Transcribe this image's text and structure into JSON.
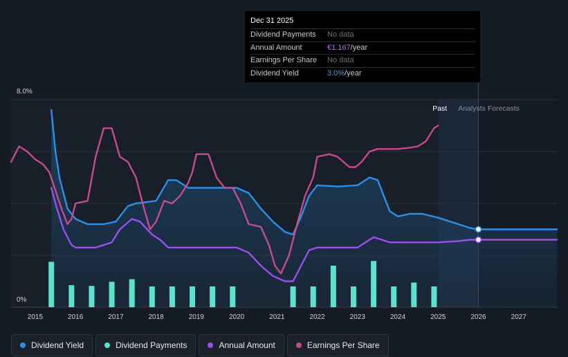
{
  "chart_data": {
    "type": "line",
    "y_max_label": "8.0%",
    "y_min_label": "0%",
    "xlim": [
      2014.4,
      2027.95
    ],
    "ylim": [
      0,
      8
    ],
    "x_ticks": [
      "2015",
      "2016",
      "2017",
      "2018",
      "2019",
      "2020",
      "2021",
      "2022",
      "2023",
      "2024",
      "2025",
      "2026",
      "2027"
    ],
    "past_label": "Past",
    "forecast_label": "Analysts Forecasts",
    "past_end_x": 2025.0,
    "forecast_start_x": 2026.0,
    "series": [
      {
        "name": "Dividend Yield",
        "color": "#2d8fe8",
        "points": [
          [
            2015.4,
            7.6
          ],
          [
            2015.5,
            6.0
          ],
          [
            2015.6,
            5.0
          ],
          [
            2015.8,
            3.8
          ],
          [
            2016.0,
            3.4
          ],
          [
            2016.3,
            3.2
          ],
          [
            2016.7,
            3.2
          ],
          [
            2017.0,
            3.3
          ],
          [
            2017.3,
            3.9
          ],
          [
            2017.5,
            4.0
          ],
          [
            2018.0,
            4.1
          ],
          [
            2018.3,
            4.9
          ],
          [
            2018.5,
            4.9
          ],
          [
            2018.8,
            4.6
          ],
          [
            2019.0,
            4.6
          ],
          [
            2019.5,
            4.6
          ],
          [
            2020.0,
            4.6
          ],
          [
            2020.3,
            4.4
          ],
          [
            2020.6,
            3.8
          ],
          [
            2020.9,
            3.3
          ],
          [
            2021.2,
            2.9
          ],
          [
            2021.4,
            2.8
          ],
          [
            2021.6,
            3.5
          ],
          [
            2021.8,
            4.3
          ],
          [
            2022.0,
            4.7
          ],
          [
            2022.5,
            4.65
          ],
          [
            2023.0,
            4.7
          ],
          [
            2023.3,
            5.0
          ],
          [
            2023.5,
            4.9
          ],
          [
            2023.8,
            3.7
          ],
          [
            2024.0,
            3.5
          ],
          [
            2024.3,
            3.6
          ],
          [
            2024.6,
            3.6
          ],
          [
            2025.0,
            3.45
          ],
          [
            2025.5,
            3.2
          ],
          [
            2025.8,
            3.05
          ],
          [
            2026.0,
            3.0
          ],
          [
            2027.95,
            3.0
          ]
        ]
      },
      {
        "name": "Annual Amount",
        "color": "#9c4ef0",
        "points": [
          [
            2015.4,
            4.6
          ],
          [
            2015.5,
            4.0
          ],
          [
            2015.7,
            3.0
          ],
          [
            2015.9,
            2.4
          ],
          [
            2016.0,
            2.3
          ],
          [
            2016.5,
            2.3
          ],
          [
            2016.9,
            2.5
          ],
          [
            2017.1,
            3.0
          ],
          [
            2017.4,
            3.4
          ],
          [
            2017.6,
            3.3
          ],
          [
            2017.9,
            2.8
          ],
          [
            2018.1,
            2.6
          ],
          [
            2018.3,
            2.3
          ],
          [
            2019.0,
            2.3
          ],
          [
            2019.5,
            2.3
          ],
          [
            2020.0,
            2.3
          ],
          [
            2020.3,
            2.1
          ],
          [
            2020.6,
            1.6
          ],
          [
            2020.9,
            1.2
          ],
          [
            2021.2,
            1.0
          ],
          [
            2021.4,
            1.0
          ],
          [
            2021.6,
            1.6
          ],
          [
            2021.8,
            2.2
          ],
          [
            2022.0,
            2.3
          ],
          [
            2022.5,
            2.3
          ],
          [
            2023.0,
            2.3
          ],
          [
            2023.2,
            2.5
          ],
          [
            2023.4,
            2.7
          ],
          [
            2023.6,
            2.6
          ],
          [
            2023.8,
            2.5
          ],
          [
            2024.0,
            2.5
          ],
          [
            2024.5,
            2.5
          ],
          [
            2025.0,
            2.5
          ],
          [
            2025.5,
            2.55
          ],
          [
            2025.8,
            2.6
          ],
          [
            2026.0,
            2.6
          ],
          [
            2027.95,
            2.6
          ]
        ]
      },
      {
        "name": "Earnings Per Share",
        "color": "#c64a8f",
        "points": [
          [
            2014.4,
            5.6
          ],
          [
            2014.6,
            6.2
          ],
          [
            2014.8,
            6.0
          ],
          [
            2015.0,
            5.7
          ],
          [
            2015.2,
            5.5
          ],
          [
            2015.35,
            5.2
          ],
          [
            2015.5,
            4.5
          ],
          [
            2015.65,
            3.8
          ],
          [
            2015.8,
            3.2
          ],
          [
            2015.9,
            3.4
          ],
          [
            2016.0,
            4.0
          ],
          [
            2016.3,
            4.1
          ],
          [
            2016.5,
            5.8
          ],
          [
            2016.7,
            6.9
          ],
          [
            2016.9,
            6.9
          ],
          [
            2017.1,
            5.8
          ],
          [
            2017.3,
            5.6
          ],
          [
            2017.5,
            5.0
          ],
          [
            2017.7,
            3.8
          ],
          [
            2017.85,
            3.0
          ],
          [
            2018.0,
            3.3
          ],
          [
            2018.2,
            4.1
          ],
          [
            2018.4,
            4.0
          ],
          [
            2018.6,
            4.3
          ],
          [
            2018.8,
            4.8
          ],
          [
            2018.9,
            5.2
          ],
          [
            2019.0,
            5.9
          ],
          [
            2019.3,
            5.9
          ],
          [
            2019.5,
            5.0
          ],
          [
            2019.7,
            4.6
          ],
          [
            2019.9,
            4.6
          ],
          [
            2020.1,
            4.0
          ],
          [
            2020.3,
            3.2
          ],
          [
            2020.6,
            3.1
          ],
          [
            2020.8,
            2.4
          ],
          [
            2020.95,
            1.6
          ],
          [
            2021.1,
            1.3
          ],
          [
            2021.3,
            2.0
          ],
          [
            2021.5,
            3.2
          ],
          [
            2021.7,
            4.3
          ],
          [
            2021.9,
            5.0
          ],
          [
            2022.0,
            5.8
          ],
          [
            2022.3,
            5.9
          ],
          [
            2022.5,
            5.8
          ],
          [
            2022.8,
            5.4
          ],
          [
            2022.95,
            5.4
          ],
          [
            2023.1,
            5.6
          ],
          [
            2023.3,
            6.0
          ],
          [
            2023.5,
            6.1
          ],
          [
            2023.8,
            6.1
          ],
          [
            2024.0,
            6.1
          ],
          [
            2024.3,
            6.15
          ],
          [
            2024.5,
            6.2
          ],
          [
            2024.7,
            6.4
          ],
          [
            2024.9,
            6.9
          ],
          [
            2025.0,
            7.0
          ]
        ]
      },
      {
        "name": "Dividend Payments",
        "color": "#5ee0cf",
        "type": "bar",
        "points": [
          [
            2015.4,
            1.75
          ],
          [
            2015.9,
            0.85
          ],
          [
            2016.4,
            0.82
          ],
          [
            2016.9,
            0.98
          ],
          [
            2017.4,
            1.08
          ],
          [
            2017.9,
            0.8
          ],
          [
            2018.4,
            0.8
          ],
          [
            2018.9,
            0.8
          ],
          [
            2019.4,
            0.8
          ],
          [
            2019.9,
            0.8
          ],
          [
            2021.4,
            0.8
          ],
          [
            2021.9,
            0.8
          ],
          [
            2022.4,
            1.6
          ],
          [
            2022.9,
            0.8
          ],
          [
            2023.4,
            1.78
          ],
          [
            2023.9,
            0.8
          ],
          [
            2024.4,
            0.95
          ],
          [
            2024.9,
            0.8
          ]
        ]
      }
    ]
  },
  "tooltip": {
    "date": "Dec 31 2025",
    "rows": [
      {
        "label": "Dividend Payments",
        "value": "No data",
        "unit": ""
      },
      {
        "label": "Annual Amount",
        "value": "€1.167",
        "unit": "/year"
      },
      {
        "label": "Earnings Per Share",
        "value": "No data",
        "unit": ""
      },
      {
        "label": "Dividend Yield",
        "value": "3.0%",
        "unit": "/year"
      }
    ]
  },
  "legend": [
    {
      "label": "Dividend Yield",
      "color": "#2d8fe8"
    },
    {
      "label": "Dividend Payments",
      "color": "#5ee0cf"
    },
    {
      "label": "Annual Amount",
      "color": "#9c4ef0"
    },
    {
      "label": "Earnings Per Share",
      "color": "#c64a8f"
    }
  ]
}
